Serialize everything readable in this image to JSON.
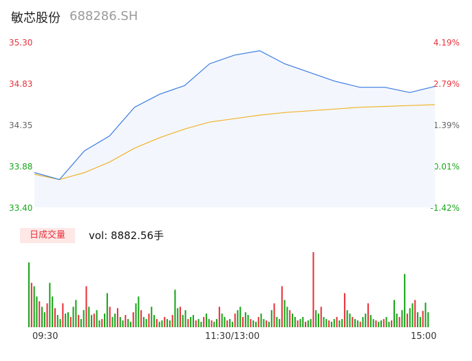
{
  "header": {
    "name": "敏芯股份",
    "code": "688286.SH"
  },
  "price_axis": {
    "labels": [
      "35.30",
      "34.83",
      "34.35",
      "33.88",
      "33.40"
    ]
  },
  "pct_axis": {
    "labels": [
      "4.19%",
      "2.79%",
      "1.39%",
      "-0.01%",
      "-1.42%"
    ]
  },
  "volume": {
    "tab_label": "日成交量",
    "text": "vol: 8882.56手"
  },
  "time_axis": {
    "labels": [
      "09:30",
      "11:30/13:00",
      "15:00"
    ]
  },
  "colors": {
    "up": "#e8323c",
    "down": "#1aa51a",
    "price_line": "#3a7be0",
    "avg_line": "#f0b429",
    "area_fill": "#f3f6fd"
  },
  "chart_data": [
    {
      "type": "line",
      "x": [
        "09:30",
        "09:45",
        "10:00",
        "10:15",
        "10:30",
        "10:45",
        "11:00",
        "11:15",
        "11:30",
        "13:15",
        "13:30",
        "13:45",
        "14:00",
        "14:15",
        "14:30",
        "14:45",
        "15:00"
      ],
      "series": [
        {
          "values": [
            33.8,
            33.72,
            34.05,
            34.22,
            34.55,
            34.7,
            34.8,
            35.05,
            35.15,
            35.2,
            35.05,
            34.95,
            34.85,
            34.78,
            34.78,
            34.72,
            34.79
          ]
        },
        {
          "values": [
            33.78,
            33.72,
            33.8,
            33.92,
            34.08,
            34.2,
            34.3,
            34.38,
            34.42,
            34.46,
            34.49,
            34.51,
            34.53,
            34.55,
            34.56,
            34.57,
            34.58
          ]
        }
      ],
      "ylim": [
        33.4,
        35.3
      ]
    },
    {
      "type": "bar",
      "series": [
        {
          "values": [
            95,
            65,
            60,
            45,
            38,
            30,
            22,
            35,
            65,
            45,
            28,
            18,
            12,
            35,
            20,
            22,
            15,
            30,
            40,
            18,
            12,
            25,
            60,
            30,
            18,
            20,
            25,
            10,
            12,
            20,
            50,
            30,
            15,
            20,
            28,
            15,
            10,
            18,
            12,
            8,
            22,
            35,
            45,
            25,
            15,
            12,
            20,
            30,
            18,
            12,
            8,
            10,
            15,
            12,
            10,
            18,
            55,
            28,
            30,
            18,
            25,
            12,
            15,
            18,
            10,
            12,
            8,
            15,
            20,
            12,
            10,
            8,
            12,
            30,
            20,
            15,
            10,
            12,
            8,
            20,
            25,
            30,
            15,
            22,
            18,
            12,
            10,
            8,
            15,
            20,
            12,
            10,
            8,
            25,
            35,
            15,
            12,
            60,
            40,
            30,
            25,
            20,
            15,
            10,
            12,
            15,
            8,
            10,
            12,
            110,
            25,
            20,
            30,
            15,
            12,
            10,
            8,
            12,
            15,
            10,
            12,
            50,
            25,
            20,
            15,
            12,
            10,
            8,
            15,
            20,
            35,
            18,
            12,
            10,
            8,
            10,
            12,
            15,
            8,
            10,
            40,
            20,
            15,
            25,
            78,
            20,
            28,
            35,
            40,
            22,
            15,
            24,
            36,
            22
          ]
        }
      ]
    }
  ]
}
